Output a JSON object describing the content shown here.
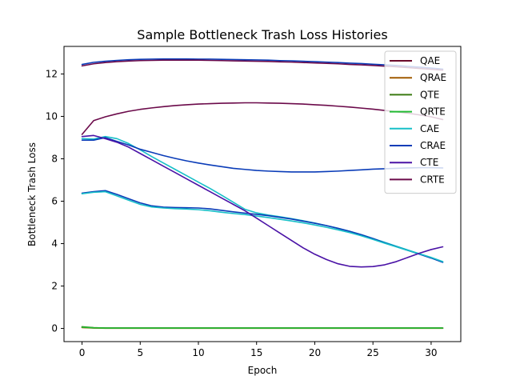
{
  "chart_data": {
    "type": "line",
    "title": "Sample Bottleneck Trash Loss Histories",
    "xlabel": "Epoch",
    "ylabel": "Bottleneck Trash Loss",
    "xlim": [
      -1.55,
      32.55
    ],
    "ylim": [
      -0.62,
      13.3
    ],
    "xticks": [
      0,
      5,
      10,
      15,
      20,
      25,
      30
    ],
    "yticks": [
      0,
      2,
      4,
      6,
      8,
      10,
      12
    ],
    "grid": false,
    "legend_position": "top-right",
    "x": [
      0,
      1,
      2,
      3,
      4,
      5,
      6,
      7,
      8,
      9,
      10,
      11,
      12,
      13,
      14,
      15,
      16,
      17,
      18,
      19,
      20,
      21,
      22,
      23,
      24,
      25,
      26,
      27,
      28,
      29,
      30,
      31
    ],
    "series": [
      {
        "name": "QAE",
        "color": "#6b0a2a",
        "values": [
          0.05,
          0.03,
          0.02,
          0.02,
          0.02,
          0.02,
          0.02,
          0.02,
          0.02,
          0.02,
          0.02,
          0.02,
          0.02,
          0.02,
          0.02,
          0.02,
          0.02,
          0.02,
          0.02,
          0.02,
          0.02,
          0.02,
          0.02,
          0.02,
          0.02,
          0.02,
          0.02,
          0.02,
          0.02,
          0.02,
          0.02,
          0.02
        ]
      },
      {
        "name": "QRAE",
        "color": "#a05a00",
        "values": [
          0.04,
          0.02,
          0.01,
          0.01,
          0.01,
          0.01,
          0.01,
          0.01,
          0.01,
          0.01,
          0.01,
          0.01,
          0.01,
          0.01,
          0.01,
          0.01,
          0.01,
          0.01,
          0.01,
          0.01,
          0.01,
          0.01,
          0.01,
          0.01,
          0.01,
          0.01,
          0.01,
          0.01,
          0.01,
          0.01,
          0.01,
          0.01
        ]
      },
      {
        "name": "QTE",
        "color": "#3a7a10",
        "values": [
          0.08,
          0.04,
          0.02,
          0.02,
          0.02,
          0.02,
          0.02,
          0.02,
          0.02,
          0.02,
          0.02,
          0.02,
          0.02,
          0.02,
          0.02,
          0.02,
          0.02,
          0.02,
          0.02,
          0.02,
          0.02,
          0.02,
          0.02,
          0.02,
          0.02,
          0.02,
          0.02,
          0.02,
          0.02,
          0.02,
          0.02,
          0.02
        ]
      },
      {
        "name": "QRTE",
        "color": "#22bb33",
        "values": [
          0.06,
          0.03,
          0.02,
          0.02,
          0.02,
          0.02,
          0.02,
          0.02,
          0.02,
          0.02,
          0.02,
          0.02,
          0.02,
          0.02,
          0.02,
          0.02,
          0.02,
          0.02,
          0.02,
          0.02,
          0.02,
          0.02,
          0.02,
          0.02,
          0.02,
          0.02,
          0.02,
          0.02,
          0.02,
          0.02,
          0.02,
          0.02
        ]
      },
      {
        "name": "CAE",
        "color": "#17bfc8",
        "values": [
          6.35,
          6.42,
          6.45,
          6.25,
          6.05,
          5.85,
          5.73,
          5.68,
          5.65,
          5.63,
          5.6,
          5.55,
          5.48,
          5.42,
          5.37,
          5.3,
          5.23,
          5.15,
          5.07,
          4.98,
          4.88,
          4.77,
          4.65,
          4.52,
          4.37,
          4.2,
          4.02,
          3.85,
          3.68,
          3.52,
          3.35,
          3.15
        ]
      },
      {
        "name": "CRAE",
        "color": "#0a3cb8",
        "values": [
          8.88,
          8.88,
          9.0,
          8.82,
          8.65,
          8.45,
          8.3,
          8.15,
          8.02,
          7.9,
          7.8,
          7.71,
          7.63,
          7.55,
          7.5,
          7.45,
          7.42,
          7.4,
          7.38,
          7.38,
          7.38,
          7.4,
          7.42,
          7.45,
          7.48,
          7.51,
          7.53,
          7.55,
          7.57,
          7.58,
          7.58,
          7.57
        ]
      },
      {
        "name": "CTE",
        "color": "#4a12a6",
        "values": [
          9.05,
          9.1,
          8.95,
          8.78,
          8.55,
          8.25,
          7.95,
          7.65,
          7.35,
          7.05,
          6.75,
          6.45,
          6.15,
          5.85,
          5.55,
          5.2,
          4.85,
          4.5,
          4.15,
          3.8,
          3.5,
          3.25,
          3.05,
          2.93,
          2.9,
          2.92,
          3.0,
          3.15,
          3.35,
          3.55,
          3.72,
          3.85
        ]
      },
      {
        "name": "CRTE",
        "color": "#6b0a4a",
        "values": [
          9.15,
          9.8,
          9.98,
          10.12,
          10.24,
          10.33,
          10.4,
          10.46,
          10.51,
          10.55,
          10.58,
          10.6,
          10.62,
          10.63,
          10.64,
          10.64,
          10.63,
          10.62,
          10.6,
          10.58,
          10.55,
          10.52,
          10.48,
          10.44,
          10.39,
          10.34,
          10.28,
          10.22,
          10.15,
          10.07,
          9.98,
          9.85
        ]
      }
    ],
    "extra_series_note": "",
    "extra_lines": [
      {
        "color": "#0a3cb8",
        "values": [
          12.45,
          12.55,
          12.6,
          12.64,
          12.67,
          12.69,
          12.7,
          12.71,
          12.71,
          12.71,
          12.7,
          12.7,
          12.69,
          12.68,
          12.67,
          12.66,
          12.65,
          12.63,
          12.62,
          12.6,
          12.58,
          12.56,
          12.54,
          12.51,
          12.49,
          12.46,
          12.43,
          12.4,
          12.36,
          12.32,
          12.28,
          12.23
        ]
      },
      {
        "color": "#6b0a4a",
        "values": [
          12.38,
          12.48,
          12.54,
          12.58,
          12.61,
          12.63,
          12.64,
          12.65,
          12.65,
          12.65,
          12.65,
          12.64,
          12.63,
          12.62,
          12.61,
          12.6,
          12.59,
          12.57,
          12.56,
          12.54,
          12.52,
          12.5,
          12.48,
          12.45,
          12.43,
          12.4,
          12.37,
          12.34,
          12.3,
          12.26,
          12.22,
          12.18
        ]
      },
      {
        "color": "#17bfc8",
        "values": [
          8.95,
          8.93,
          9.05,
          8.95,
          8.72,
          8.42,
          8.1,
          7.8,
          7.5,
          7.2,
          6.9,
          6.6,
          6.28,
          5.95,
          5.62,
          5.45,
          5.35,
          5.27,
          5.18,
          5.08,
          4.97,
          4.85,
          4.72,
          4.58,
          4.42,
          4.24,
          4.06,
          3.88,
          3.7,
          3.52,
          3.33,
          3.12
        ]
      },
      {
        "color": "#0a3cb8",
        "values": [
          6.38,
          6.45,
          6.5,
          6.32,
          6.12,
          5.92,
          5.78,
          5.72,
          5.7,
          5.69,
          5.68,
          5.64,
          5.57,
          5.5,
          5.44,
          5.38,
          5.32,
          5.24,
          5.16,
          5.06,
          4.96,
          4.85,
          4.72,
          4.58,
          4.42,
          4.24,
          4.04,
          3.86,
          3.68,
          3.5,
          3.32,
          3.12
        ]
      }
    ]
  }
}
